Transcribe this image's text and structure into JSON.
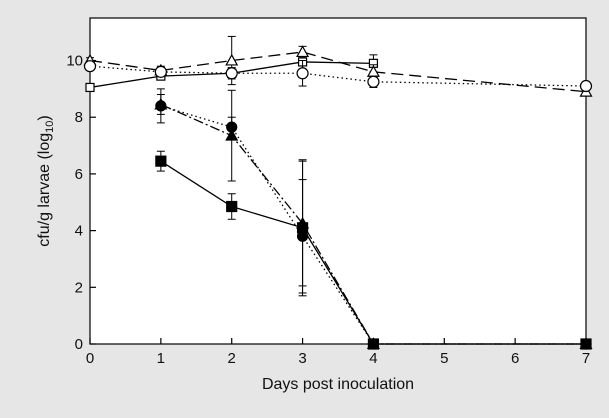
{
  "chart_data": {
    "type": "line",
    "title": "",
    "xlabel": "Days post inoculation",
    "ylabel_main": "cfu/g larvae (log",
    "ylabel_sub": "10",
    "ylabel_close": ")",
    "xlim": [
      0,
      7
    ],
    "ylim": [
      0,
      11.5
    ],
    "x_ticks": [
      0,
      1,
      2,
      3,
      4,
      5,
      6,
      7
    ],
    "y_ticks": [
      0,
      2,
      4,
      6,
      8,
      10
    ],
    "grid": false,
    "legend": "none",
    "series": [
      {
        "marker": "open-square",
        "line": "solid",
        "x": [
          0,
          1,
          2,
          3,
          4
        ],
        "y": [
          9.05,
          9.45,
          9.55,
          9.95,
          9.9
        ],
        "err": [
          0.1,
          0.1,
          0.1,
          0.3,
          0.3
        ]
      },
      {
        "marker": "open-triangle",
        "line": "dashed",
        "x": [
          0,
          1,
          2,
          3,
          4,
          7
        ],
        "y": [
          10.0,
          9.65,
          10.0,
          10.3,
          9.6,
          8.9
        ],
        "err": [
          0.1,
          0.15,
          0.85,
          0.2,
          0.25,
          0.1
        ]
      },
      {
        "marker": "open-circle",
        "line": "dotted",
        "x": [
          0,
          1,
          2,
          3,
          4,
          7
        ],
        "y": [
          9.8,
          9.6,
          9.55,
          9.55,
          9.25,
          9.1
        ],
        "err": [
          0.1,
          0.15,
          0.2,
          0.45,
          0.2,
          0.1
        ]
      },
      {
        "marker": "filled-square",
        "line": "solid",
        "x": [
          1,
          2,
          3,
          4,
          7
        ],
        "y": [
          6.45,
          4.85,
          4.1,
          0.0,
          0.0
        ],
        "err": [
          0.35,
          0.45,
          2.4,
          0,
          0
        ]
      },
      {
        "marker": "filled-circle",
        "line": "dotted",
        "x": [
          1,
          2,
          3,
          4,
          7
        ],
        "y": [
          8.4,
          7.65,
          3.8,
          0.0,
          0.0
        ],
        "err": [
          0.6,
          0.35,
          2.0,
          0,
          0
        ]
      },
      {
        "marker": "filled-triangle",
        "line": "dashdot",
        "x": [
          1,
          2,
          3,
          4,
          7
        ],
        "y": [
          8.45,
          7.35,
          4.25,
          0.0,
          0.0
        ],
        "err": [
          0.35,
          1.6,
          2.2,
          0,
          0
        ]
      }
    ]
  }
}
